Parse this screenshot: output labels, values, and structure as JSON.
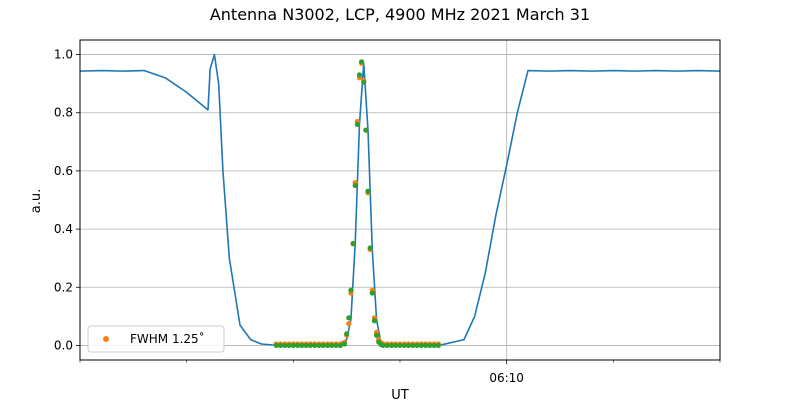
{
  "chart_data": {
    "type": "line",
    "title": "Antenna N3002, LCP, 4900 MHz 2021 March 31",
    "xlabel": "UT",
    "ylabel": "a.u.",
    "xlim": [
      0,
      30
    ],
    "ylim": [
      -0.05,
      1.05
    ],
    "x_unit": "minutes relative to an unlabeled start; 06:10 at x = 20",
    "xticks_major": [
      {
        "x": 20,
        "label": "06:10"
      }
    ],
    "xticks_minor": [
      0,
      5,
      10,
      15,
      25,
      30
    ],
    "yticks": [
      {
        "v": 0.0,
        "label": "0.0"
      },
      {
        "v": 0.2,
        "label": "0.2"
      },
      {
        "v": 0.4,
        "label": "0.4"
      },
      {
        "v": 0.6,
        "label": "0.6"
      },
      {
        "v": 0.8,
        "label": "0.8"
      },
      {
        "v": 1.0,
        "label": "1.0"
      }
    ],
    "grid": true,
    "legend_position": "lower-left",
    "series": [
      {
        "name": "",
        "kind": "line",
        "color": "#1f77b4",
        "x": [
          0,
          1,
          2,
          3,
          4,
          5,
          6,
          6.1,
          6.3,
          6.5,
          6.7,
          7.0,
          7.5,
          8.0,
          8.5,
          9.0,
          10.0,
          11.0,
          12.0,
          12.5,
          12.7,
          12.9,
          13.1,
          13.3,
          13.5,
          13.7,
          13.9,
          14.1,
          14.3,
          14.5,
          15.0,
          16.0,
          17.0,
          18.0,
          18.5,
          19.0,
          19.5,
          20.0,
          20.5,
          21.0,
          22.0,
          23.0,
          24.0,
          25.0,
          26.0,
          27.0,
          28.0,
          29.0,
          30.0
        ],
        "y": [
          0.943,
          0.945,
          0.943,
          0.945,
          0.92,
          0.87,
          0.81,
          0.95,
          1.0,
          0.9,
          0.6,
          0.3,
          0.07,
          0.02,
          0.005,
          0.002,
          0.0,
          0.0,
          0.002,
          0.02,
          0.09,
          0.35,
          0.76,
          0.97,
          0.74,
          0.33,
          0.09,
          0.01,
          0.003,
          0.0,
          0.0,
          0.0,
          0.003,
          0.02,
          0.1,
          0.25,
          0.45,
          0.62,
          0.8,
          0.945,
          0.943,
          0.945,
          0.943,
          0.945,
          0.943,
          0.945,
          0.943,
          0.945,
          0.943
        ]
      },
      {
        "name": "FWHM 1.25˚",
        "kind": "scatter",
        "color": "#ff7f0e",
        "x": [
          9.2,
          9.4,
          9.6,
          9.8,
          10.0,
          10.2,
          10.4,
          10.6,
          10.8,
          11.0,
          11.2,
          11.4,
          11.6,
          11.8,
          12.0,
          12.2,
          12.4,
          12.5,
          12.6,
          12.7,
          12.8,
          12.9,
          13.0,
          13.1,
          13.2,
          13.3,
          13.4,
          13.5,
          13.6,
          13.7,
          13.8,
          13.9,
          14.0,
          14.1,
          14.2,
          14.4,
          14.6,
          14.8,
          15.0,
          15.2,
          15.4,
          15.6,
          15.8,
          16.0,
          16.2,
          16.4,
          16.6,
          16.8
        ],
        "y": [
          0.005,
          0.005,
          0.005,
          0.005,
          0.005,
          0.005,
          0.005,
          0.005,
          0.005,
          0.005,
          0.005,
          0.005,
          0.005,
          0.005,
          0.005,
          0.005,
          0.01,
          0.035,
          0.075,
          0.18,
          0.35,
          0.56,
          0.77,
          0.92,
          0.97,
          0.91,
          0.74,
          0.525,
          0.33,
          0.19,
          0.095,
          0.045,
          0.02,
          0.01,
          0.005,
          0.005,
          0.005,
          0.005,
          0.005,
          0.005,
          0.005,
          0.005,
          0.005,
          0.005,
          0.005,
          0.005,
          0.005,
          0.005
        ]
      },
      {
        "name": "",
        "kind": "scatter",
        "color": "#2ca02c",
        "x": [
          9.2,
          9.4,
          9.6,
          9.8,
          10.0,
          10.2,
          10.4,
          10.6,
          10.8,
          11.0,
          11.2,
          11.4,
          11.6,
          11.8,
          12.0,
          12.2,
          12.4,
          12.5,
          12.6,
          12.7,
          12.8,
          12.9,
          13.0,
          13.1,
          13.2,
          13.3,
          13.4,
          13.5,
          13.6,
          13.7,
          13.8,
          13.9,
          14.0,
          14.1,
          14.2,
          14.4,
          14.6,
          14.8,
          15.0,
          15.2,
          15.4,
          15.6,
          15.8,
          16.0,
          16.2,
          16.4,
          16.6,
          16.8
        ],
        "y": [
          0.0,
          0.0,
          0.0,
          0.0,
          0.0,
          0.0,
          0.0,
          0.0,
          0.0,
          0.0,
          0.0,
          0.0,
          0.0,
          0.0,
          0.0,
          0.0,
          0.005,
          0.04,
          0.095,
          0.19,
          0.35,
          0.55,
          0.76,
          0.93,
          0.975,
          0.905,
          0.74,
          0.53,
          0.335,
          0.18,
          0.085,
          0.035,
          0.012,
          0.004,
          0.0,
          0.0,
          0.0,
          0.0,
          0.0,
          0.0,
          0.0,
          0.0,
          0.0,
          0.0,
          0.0,
          0.0,
          0.0,
          0.0
        ]
      }
    ]
  }
}
